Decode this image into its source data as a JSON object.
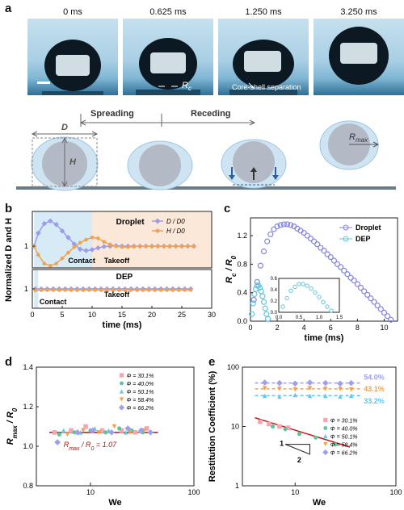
{
  "panel_labels": {
    "a": "a",
    "b": "b",
    "c": "c",
    "d": "d",
    "e": "e"
  },
  "panel_a": {
    "frames": [
      "0 ms",
      "0.625 ms",
      "1.250 ms",
      "3.250 ms"
    ],
    "rc_label": "R",
    "rc_sub": "c",
    "separation_label": "Core-shell separation",
    "schematic": {
      "spreading": "Spreading",
      "receding": "Receding",
      "d_label": "D",
      "h_label": "H",
      "rmax_label": "R",
      "rmax_sub": "max"
    }
  },
  "chart_data": [
    {
      "id": "b",
      "type": "line",
      "ylabel": "Normalized D and H",
      "xlabel": "time (ms)",
      "xlim": [
        0,
        30
      ],
      "xticks": [
        0,
        5,
        10,
        15,
        20,
        25,
        30
      ],
      "top": {
        "title": "Droplet",
        "ylim": [
          0.5,
          1.8
        ],
        "yticks": [
          1
        ],
        "legend": [
          "D / D0",
          "H / D0"
        ],
        "annotations": [
          "Contact",
          "Takeoff"
        ],
        "series": [
          {
            "name": "D / D0",
            "color": "#9c9ce8",
            "x": [
              0.3,
              1,
              2,
              3,
              4,
              5,
              6,
              7,
              8,
              9,
              10,
              11,
              12,
              13,
              14,
              15,
              16,
              17,
              18,
              19,
              20,
              21,
              22,
              23,
              24,
              25,
              26,
              27
            ],
            "y": [
              1.0,
              1.3,
              1.52,
              1.58,
              1.5,
              1.35,
              1.2,
              1.05,
              0.93,
              0.9,
              0.92,
              0.96,
              0.99,
              1.0,
              1.01,
              1.0,
              1.0,
              1.0,
              1.0,
              1.0,
              1.0,
              1.0,
              1.0,
              1.0,
              1.0,
              1.0,
              1.0,
              1.0
            ]
          },
          {
            "name": "H / D0",
            "color": "#f0a24e",
            "x": [
              0.3,
              1,
              2,
              3,
              4,
              5,
              6,
              7,
              8,
              9,
              10,
              11,
              12,
              13,
              14,
              15,
              16,
              17,
              18,
              19,
              20,
              21,
              22,
              23,
              24,
              25,
              26,
              27
            ],
            "y": [
              1.0,
              0.8,
              0.6,
              0.55,
              0.6,
              0.72,
              0.85,
              0.98,
              1.08,
              1.15,
              1.2,
              1.18,
              1.1,
              1.04,
              1.0,
              0.98,
              0.98,
              0.99,
              1.0,
              1.0,
              1.0,
              1.0,
              1.0,
              1.0,
              1.0,
              1.0,
              1.0,
              1.0
            ]
          }
        ]
      },
      "bottom": {
        "title": "DEP",
        "ylim": [
          0.5,
          1.5
        ],
        "yticks": [
          1
        ],
        "annotations": [
          "Contact",
          "Takeoff"
        ],
        "series": [
          {
            "name": "D / D0",
            "color": "#9c9ce8",
            "x": [
              0.5,
              1.5,
              2.5,
              3.5,
              4.5,
              5.5,
              6.5,
              7.5,
              8.5,
              9.5,
              10.5,
              11.5,
              12.5,
              13.5,
              14.5,
              15.5,
              16.5,
              17.5,
              18.5,
              19.5,
              20.5,
              21.5,
              22.5,
              23.5,
              24.5,
              25.5,
              26.5
            ],
            "y": [
              1.0,
              1.0,
              1.0,
              1.0,
              1.0,
              1.0,
              1.0,
              1.0,
              1.0,
              1.0,
              1.0,
              1.0,
              1.0,
              1.0,
              1.0,
              1.0,
              1.0,
              1.0,
              1.0,
              1.0,
              1.0,
              1.0,
              1.0,
              1.0,
              1.0,
              1.0,
              1.0
            ]
          },
          {
            "name": "H / D0",
            "color": "#f0a24e",
            "x": [
              0.5,
              1.5,
              2.5,
              3.5,
              4.5,
              5.5,
              6.5,
              7.5,
              8.5,
              9.5,
              10.5,
              11.5,
              12.5,
              13.5,
              14.5,
              15.5,
              16.5,
              17.5,
              18.5,
              19.5,
              20.5,
              21.5,
              22.5,
              23.5,
              24.5,
              25.5,
              26.5
            ],
            "y": [
              0.96,
              0.97,
              0.97,
              0.97,
              0.97,
              0.97,
              0.97,
              0.97,
              0.97,
              0.97,
              0.97,
              0.97,
              0.97,
              0.97,
              0.97,
              0.97,
              0.97,
              0.97,
              0.97,
              0.97,
              0.97,
              0.97,
              0.97,
              0.97,
              0.97,
              0.97,
              0.97
            ]
          }
        ]
      }
    },
    {
      "id": "c",
      "type": "scatter",
      "xlabel": "time (ms)",
      "ylabel": "R",
      "ylabel_sub_1": "c",
      "ylabel_mid": " / R",
      "ylabel_sub_2": "0",
      "xlim": [
        0,
        11
      ],
      "ylim": [
        0,
        1.45
      ],
      "xticks": [
        0,
        2,
        4,
        6,
        8,
        10
      ],
      "yticks": [
        0.0,
        0.4,
        0.8,
        1.2
      ],
      "series": [
        {
          "name": "Droplet",
          "color": "#8585dd",
          "x": [
            0.25,
            0.5,
            0.75,
            1.0,
            1.25,
            1.5,
            1.75,
            2.0,
            2.25,
            2.5,
            2.75,
            3.0,
            3.25,
            3.5,
            3.75,
            4.0,
            4.25,
            4.5,
            4.75,
            5.0,
            5.25,
            5.5,
            5.75,
            6.0,
            6.25,
            6.5,
            6.75,
            7.0,
            7.25,
            7.5,
            7.75,
            8.0,
            8.25,
            8.5,
            8.75,
            9.0,
            9.25,
            9.5,
            9.75,
            10.0,
            10.25,
            10.5
          ],
          "y": [
            0.3,
            0.55,
            0.78,
            0.98,
            1.12,
            1.22,
            1.29,
            1.33,
            1.35,
            1.36,
            1.36,
            1.35,
            1.33,
            1.3,
            1.27,
            1.24,
            1.2,
            1.16,
            1.12,
            1.08,
            1.03,
            0.99,
            0.94,
            0.9,
            0.85,
            0.8,
            0.76,
            0.71,
            0.66,
            0.61,
            0.57,
            0.52,
            0.47,
            0.42,
            0.37,
            0.32,
            0.27,
            0.22,
            0.17,
            0.12,
            0.07,
            0.02
          ]
        },
        {
          "name": "DEP",
          "color": "#67c5dc",
          "x": [
            0.1,
            0.2,
            0.3,
            0.4,
            0.5,
            0.6,
            0.7,
            0.8,
            0.9,
            1.0,
            1.1,
            1.2,
            1.3
          ],
          "y": [
            0.1,
            0.25,
            0.38,
            0.45,
            0.5,
            0.5,
            0.47,
            0.42,
            0.35,
            0.27,
            0.18,
            0.1,
            0.03
          ]
        }
      ],
      "inset": {
        "xlim": [
          0,
          1.5
        ],
        "ylim": [
          0,
          0.6
        ],
        "xticks": [
          0.0,
          0.5,
          1.0,
          1.5
        ],
        "yticks": [
          0.0,
          0.2,
          0.4,
          0.6
        ]
      }
    },
    {
      "id": "d",
      "type": "scatter",
      "xlabel": "We",
      "ylabel": "R",
      "ylabel_sub_1": "max",
      "ylabel_mid": " / R",
      "ylabel_sub_2": "0",
      "xscale": "log",
      "xlim": [
        3,
        100
      ],
      "ylim": [
        0.8,
        1.4
      ],
      "xticks": [
        10,
        100
      ],
      "yticks": [
        0.8,
        1.0,
        1.2,
        1.4
      ],
      "fit_label": "R",
      "fit_label_sub_1": "max",
      "fit_label_mid": " / R",
      "fit_label_sub_2": "0",
      "fit_label_value": " = 1.07",
      "fit_value": 1.07,
      "legend": [
        "Φ = 30.1%",
        "Φ = 40.0%",
        "Φ = 50.1%",
        "Φ = 58.4%",
        "Φ = 66.2%"
      ],
      "series": [
        {
          "name": "Φ = 30.1%",
          "color": "#f4a6b0",
          "marker": "square",
          "x": [
            4.5,
            6.5,
            9,
            13,
            20,
            27,
            35
          ],
          "y": [
            1.07,
            1.08,
            1.1,
            1.08,
            1.08,
            1.07,
            1.09
          ]
        },
        {
          "name": "Φ = 40.0%",
          "color": "#5cc39a",
          "marker": "hexagon",
          "x": [
            5,
            7,
            10,
            14,
            19,
            25,
            32
          ],
          "y": [
            1.06,
            1.07,
            1.08,
            1.07,
            1.09,
            1.08,
            1.07
          ]
        },
        {
          "name": "Φ = 50.1%",
          "color": "#68c6e6",
          "marker": "triangle",
          "x": [
            5.5,
            8,
            11,
            15,
            22,
            30
          ],
          "y": [
            1.08,
            1.07,
            1.09,
            1.08,
            1.07,
            1.08
          ]
        },
        {
          "name": "Φ = 58.4%",
          "color": "#f4a24a",
          "marker": "triangle-down",
          "x": [
            6,
            8.5,
            12,
            17,
            24,
            33
          ],
          "y": [
            1.06,
            1.08,
            1.07,
            1.1,
            1.07,
            1.08
          ]
        },
        {
          "name": "Φ = 66.2%",
          "color": "#9f9ff0",
          "marker": "diamond",
          "x": [
            4.8,
            7.5,
            10.5,
            16,
            23,
            31,
            38
          ],
          "y": [
            1.02,
            1.07,
            1.08,
            1.07,
            1.09,
            1.08,
            1.07
          ]
        }
      ]
    },
    {
      "id": "e",
      "type": "scatter",
      "xlabel": "We",
      "ylabel": "Restitution Coefficient (%)",
      "xscale": "log",
      "yscale": "log",
      "xlim": [
        3,
        100
      ],
      "ylim": [
        1,
        100
      ],
      "xticks": [
        10,
        100
      ],
      "yticks": [
        1,
        10,
        100
      ],
      "slope_labels": [
        "1",
        "2"
      ],
      "legend": [
        "Φ = 30.1%",
        "Φ = 40.0%",
        "Φ = 50.1%",
        "Φ = 58.4%",
        "Φ = 66.2%"
      ],
      "reference_lines": [
        {
          "label": "54.0%",
          "value": 54.0,
          "color": "#9f9ff0"
        },
        {
          "label": "43.1%",
          "value": 43.1,
          "color": "#f4a24a"
        },
        {
          "label": "33.2%",
          "value": 33.2,
          "color": "#68c6e6"
        }
      ],
      "fit_line": {
        "x": [
          4,
          35
        ],
        "y": [
          14,
          4.5
        ],
        "color": "#c21b1b"
      },
      "series": [
        {
          "name": "Φ = 30.1%",
          "color": "#f4a6b0",
          "marker": "square",
          "x": [
            4.5,
            5.5,
            7,
            8.5
          ],
          "y": [
            12,
            11,
            10,
            9.5
          ]
        },
        {
          "name": "Φ = 40.0%",
          "color": "#5cc39a",
          "marker": "hexagon",
          "x": [
            6,
            8,
            11,
            16,
            25
          ],
          "y": [
            10,
            9,
            7.5,
            6.5,
            5
          ]
        },
        {
          "name": "Φ = 50.1%",
          "color": "#68c6e6",
          "marker": "triangle",
          "x": [
            5,
            7,
            10,
            14,
            20,
            28,
            36
          ],
          "y": [
            33,
            32,
            34,
            33,
            33,
            32,
            33
          ]
        },
        {
          "name": "Φ = 58.4%",
          "color": "#f4a24a",
          "marker": "triangle-down",
          "x": [
            5,
            7,
            10,
            14,
            20,
            28,
            36
          ],
          "y": [
            44,
            43,
            42,
            44,
            43,
            43,
            42
          ]
        },
        {
          "name": "Φ = 66.2%",
          "color": "#9f9ff0",
          "marker": "diamond",
          "x": [
            5,
            7,
            10,
            14,
            20,
            28,
            36
          ],
          "y": [
            55,
            54,
            53,
            55,
            54,
            53,
            54
          ]
        }
      ]
    }
  ]
}
